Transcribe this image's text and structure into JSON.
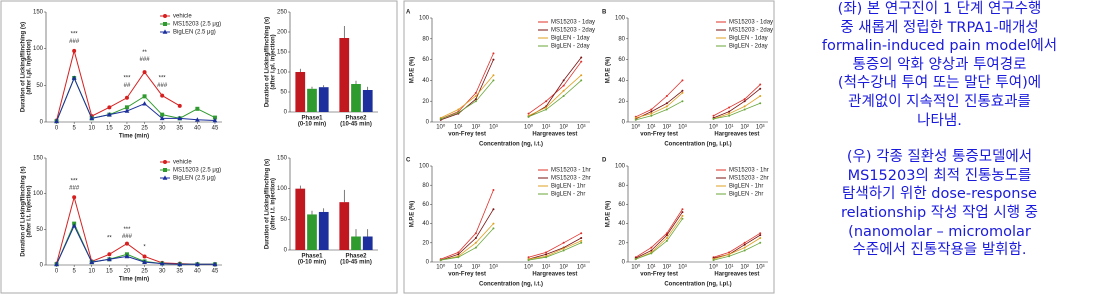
{
  "chart_data": [
    {
      "type": "line",
      "xlabel": "Time (min)",
      "ylabel": [
        "Duration of Licking/flinching (s)",
        "(after i.pl. injection)"
      ],
      "x": [
        0,
        5,
        10,
        15,
        20,
        25,
        30,
        35,
        40,
        45
      ],
      "xlim": [
        -3,
        47
      ],
      "xticks": [
        0,
        5,
        10,
        15,
        20,
        25,
        30,
        35,
        40,
        45
      ],
      "ylim": [
        0,
        150
      ],
      "yticks": [
        0,
        50,
        100,
        150
      ],
      "legend": "upper right",
      "series": [
        {
          "name": "vehicle",
          "color": "#d62020",
          "marker": "circle",
          "values": [
            2,
            97,
            8,
            20,
            33,
            68,
            36,
            22,
            null,
            null
          ]
        },
        {
          "name": "MS15203 (2.5 μg)",
          "color": "#2f9b2f",
          "marker": "square",
          "values": [
            1,
            60,
            5,
            10,
            20,
            35,
            10,
            5,
            18,
            6
          ]
        },
        {
          "name": "BigLEN (2.5 μg)",
          "color": "#1c2f9c",
          "marker": "triangle",
          "values": [
            1,
            60,
            5,
            10,
            15,
            25,
            5,
            5,
            3,
            2
          ]
        }
      ],
      "annotations": [
        {
          "text": "***",
          "x": 5,
          "y": 120
        },
        {
          "text": "###",
          "x": 5,
          "y": 110
        },
        {
          "text": "***",
          "x": 20,
          "y": 60
        },
        {
          "text": "##",
          "x": 20,
          "y": 50
        },
        {
          "text": "**",
          "x": 25,
          "y": 95
        },
        {
          "text": "###",
          "x": 25,
          "y": 85
        },
        {
          "text": "***",
          "x": 30,
          "y": 60
        },
        {
          "text": "###",
          "x": 30,
          "y": 50
        }
      ]
    },
    {
      "type": "bar",
      "ylabel": [
        "Duration of Licking/flinching (s)",
        "(after i.pl. injection)"
      ],
      "categories": [
        "Phase1",
        "Phase2"
      ],
      "category_sublabels": [
        "(0-10 min)",
        "(10-45 min)"
      ],
      "ylim": [
        0,
        250
      ],
      "yticks": [
        0,
        50,
        100,
        150,
        200,
        250
      ],
      "series": [
        {
          "name": "vehicle",
          "color": "#c0181e",
          "values": [
            100,
            185
          ],
          "errors": [
            8,
            30
          ]
        },
        {
          "name": "MS15203 (2.5 μg)",
          "color": "#2f9b2f",
          "values": [
            58,
            70
          ],
          "errors": [
            5,
            8
          ]
        },
        {
          "name": "BigLEN (2.5 μg)",
          "color": "#1c2f9c",
          "values": [
            62,
            55
          ],
          "errors": [
            5,
            8
          ]
        }
      ]
    },
    {
      "type": "line",
      "xlabel": "Time (min)",
      "ylabel": [
        "Duration of Licking/flinching (s)",
        "(after i.t. injection)"
      ],
      "x": [
        0,
        5,
        10,
        15,
        20,
        25,
        30,
        35,
        40,
        45
      ],
      "xlim": [
        -3,
        47
      ],
      "xticks": [
        0,
        5,
        10,
        15,
        20,
        25,
        30,
        35,
        40,
        45
      ],
      "ylim": [
        0,
        150
      ],
      "yticks": [
        0,
        50,
        100,
        150
      ],
      "legend": "upper right",
      "series": [
        {
          "name": "vehicle",
          "color": "#d62020",
          "marker": "circle",
          "values": [
            2,
            95,
            5,
            15,
            30,
            12,
            3,
            2,
            1,
            1
          ]
        },
        {
          "name": "MS15203 (2.5 μg)",
          "color": "#2f9b2f",
          "marker": "square",
          "values": [
            1,
            58,
            4,
            8,
            15,
            5,
            2,
            1,
            1,
            1
          ]
        },
        {
          "name": "BigLEN (2.5 μg)",
          "color": "#1c2f9c",
          "marker": "triangle",
          "values": [
            1,
            55,
            4,
            8,
            12,
            4,
            2,
            1,
            1,
            1
          ]
        }
      ],
      "annotations": [
        {
          "text": "***",
          "x": 5,
          "y": 118
        },
        {
          "text": "###",
          "x": 5,
          "y": 108
        },
        {
          "text": "**",
          "x": 15,
          "y": 38
        },
        {
          "text": "***",
          "x": 20,
          "y": 50
        },
        {
          "text": "###",
          "x": 20,
          "y": 40
        },
        {
          "text": "*",
          "x": 25,
          "y": 25
        }
      ]
    },
    {
      "type": "bar",
      "ylabel": [
        "Duration of Licking/flinching (s)",
        "(after i.t. injection)"
      ],
      "categories": [
        "Phase1",
        "Phase2"
      ],
      "category_sublabels": [
        "(0-10 min)",
        "(10-45 min)"
      ],
      "ylim": [
        0,
        150
      ],
      "yticks": [
        0,
        50,
        100,
        150
      ],
      "series": [
        {
          "name": "vehicle",
          "color": "#c0181e",
          "values": [
            100,
            78
          ],
          "errors": [
            5,
            20
          ]
        },
        {
          "name": "MS15203 (2.5 μg)",
          "color": "#2f9b2f",
          "values": [
            58,
            22
          ],
          "errors": [
            6,
            12
          ]
        },
        {
          "name": "BigLEN (2.5 μg)",
          "color": "#1c2f9c",
          "values": [
            62,
            22
          ],
          "errors": [
            6,
            12
          ]
        }
      ]
    },
    {
      "type": "line",
      "panel": "A",
      "xlabel": "Concentration (ng, i.t.)",
      "ylabel": [
        "M.P.E (%)"
      ],
      "categories": [
        "10⁰",
        "10¹",
        "10²",
        "10³",
        "10⁰",
        "10¹",
        "10²",
        "10³"
      ],
      "groups": [
        "von-Frey test",
        "Hargreaves test"
      ],
      "ylim": [
        0,
        100
      ],
      "yticks": [
        0,
        20,
        40,
        60,
        80,
        100
      ],
      "legend": "upper right",
      "series": [
        {
          "name": "MS15203 - 1day",
          "color": "#e0302a",
          "values": [
            3,
            10,
            28,
            66,
            8,
            20,
            35,
            58
          ]
        },
        {
          "name": "MS15203 - 2day",
          "color": "#7a1010",
          "values": [
            2,
            8,
            22,
            60,
            5,
            15,
            40,
            62
          ]
        },
        {
          "name": "BigLEN - 1day",
          "color": "#e0a020",
          "values": [
            4,
            12,
            25,
            45,
            6,
            14,
            30,
            45
          ]
        },
        {
          "name": "BigLEN - 2day",
          "color": "#6aa63a",
          "values": [
            3,
            9,
            20,
            40,
            5,
            12,
            25,
            40
          ]
        }
      ]
    },
    {
      "type": "line",
      "panel": "B",
      "xlabel": "Concentration (ng, i.pl.)",
      "ylabel": [
        "M.P.E (%)"
      ],
      "categories": [
        "10⁰",
        "10¹",
        "10²",
        "10³",
        "10⁰",
        "10¹",
        "10²",
        "10³"
      ],
      "groups": [
        "von-Frey test",
        "Hargreaves test"
      ],
      "ylim": [
        0,
        100
      ],
      "yticks": [
        0,
        20,
        40,
        60,
        80,
        100
      ],
      "legend": "upper right",
      "series": [
        {
          "name": "MS15203 - 1day",
          "color": "#e0302a",
          "values": [
            5,
            12,
            25,
            40,
            6,
            14,
            22,
            36
          ]
        },
        {
          "name": "MS15203 - 2day",
          "color": "#7a1010",
          "values": [
            3,
            10,
            18,
            30,
            4,
            10,
            20,
            32
          ]
        },
        {
          "name": "BigLEN - 1day",
          "color": "#e0a020",
          "values": [
            4,
            8,
            15,
            28,
            3,
            8,
            15,
            25
          ]
        },
        {
          "name": "BigLEN - 2day",
          "color": "#6aa63a",
          "values": [
            2,
            6,
            12,
            20,
            3,
            6,
            12,
            18
          ]
        }
      ]
    },
    {
      "type": "line",
      "panel": "C",
      "xlabel": "Concentration (ng, i.t.)",
      "ylabel": [
        "M.P.E (%)"
      ],
      "categories": [
        "10⁰",
        "10¹",
        "10²",
        "10³",
        "10⁰",
        "10¹",
        "10²",
        "10³"
      ],
      "groups": [
        "von-Frey test",
        "Hargreaves test"
      ],
      "ylim": [
        0,
        100
      ],
      "yticks": [
        0,
        20,
        40,
        60,
        80,
        100
      ],
      "legend": "upper right",
      "series": [
        {
          "name": "MS15203 - 1hr",
          "color": "#e0302a",
          "values": [
            3,
            10,
            30,
            75,
            5,
            10,
            20,
            30
          ]
        },
        {
          "name": "MS15203 - 2hr",
          "color": "#7a1010",
          "values": [
            2,
            8,
            25,
            55,
            3,
            8,
            15,
            25
          ]
        },
        {
          "name": "BigLEN - 1hr",
          "color": "#e0a020",
          "values": [
            2,
            6,
            20,
            40,
            3,
            6,
            14,
            22
          ]
        },
        {
          "name": "BigLEN - 2hr",
          "color": "#6aa63a",
          "values": [
            2,
            5,
            15,
            35,
            2,
            5,
            12,
            20
          ]
        }
      ]
    },
    {
      "type": "line",
      "panel": "D",
      "xlabel": "Concentration (ng, i.pl.)",
      "ylabel": [
        "M.P.E (%)"
      ],
      "categories": [
        "10⁰",
        "10¹",
        "10²",
        "10³",
        "10⁰",
        "10¹",
        "10²",
        "10³"
      ],
      "groups": [
        "von-Frey test",
        "Hargreaves test"
      ],
      "ylim": [
        0,
        100
      ],
      "yticks": [
        0,
        20,
        40,
        60,
        80,
        100
      ],
      "legend": "upper right",
      "series": [
        {
          "name": "MS15203 - 1hr",
          "color": "#e0302a",
          "values": [
            5,
            15,
            30,
            55,
            5,
            10,
            20,
            30
          ]
        },
        {
          "name": "MS15203 - 2hr",
          "color": "#7a1010",
          "values": [
            4,
            12,
            28,
            52,
            4,
            8,
            18,
            28
          ]
        },
        {
          "name": "BigLEN - 1hr",
          "color": "#e0a020",
          "values": [
            3,
            10,
            25,
            48,
            3,
            8,
            15,
            25
          ]
        },
        {
          "name": "BigLEN - 2hr",
          "color": "#6aa63a",
          "values": [
            3,
            9,
            22,
            45,
            2,
            6,
            12,
            20
          ]
        }
      ]
    }
  ],
  "caption": {
    "left": [
      "(좌) 본 연구진이 1 단계 연구수행",
      "중 새롭게 정립한 TRPA1-매개성",
      "formalin-induced pain model에서",
      "통증의 악화 양상과 투여경로",
      "(척수강내 투여 또는 말단 투여)에",
      "관계없이 지속적인 진통효과를",
      "나타냄."
    ],
    "right": [
      "(우) 각종 질환성 통증모델에서",
      "MS15203의 최적 진통농도를",
      "탐색하기 위한 dose-response",
      "relationship 작성 작업 시행 중",
      "(nanomolar – micromolar",
      "수준에서 진통작용을 발휘함."
    ]
  }
}
